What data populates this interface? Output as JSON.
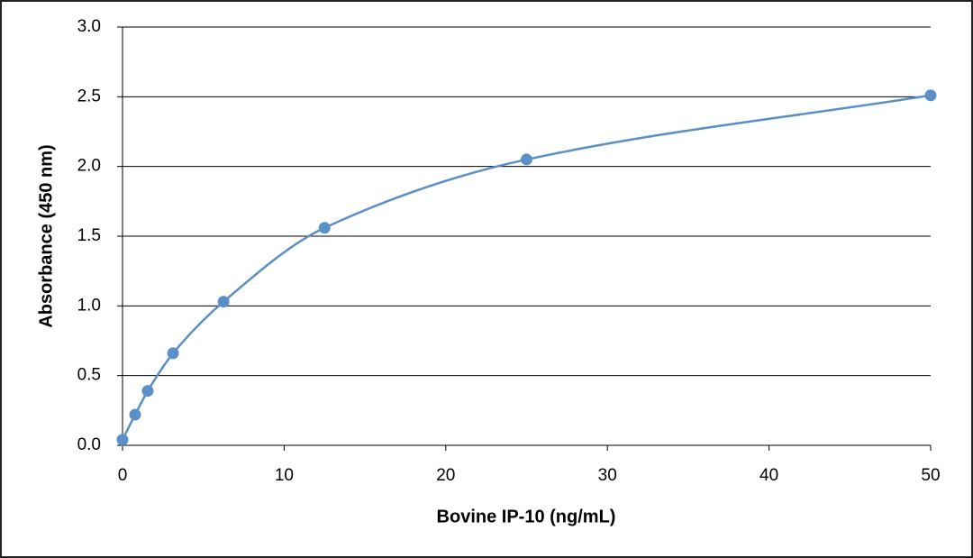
{
  "chart_data": {
    "type": "scatter",
    "x_label": "Bovine IP-10 (ng/mL)",
    "y_label": "Absorbance (450 nm)",
    "series": [
      {
        "color": "#5b8fc7",
        "x": [
          0,
          0.78,
          1.56,
          3.125,
          6.25,
          12.5,
          25,
          50
        ],
        "values": [
          0.04,
          0.22,
          0.39,
          0.66,
          1.03,
          1.56,
          2.05,
          2.51
        ]
      }
    ],
    "smooth_line": true,
    "xlim": [
      0,
      50
    ],
    "xticks": [
      0,
      10,
      20,
      30,
      40,
      50
    ],
    "ylim": [
      0,
      3
    ],
    "yticks": [
      {
        "value": 0,
        "label": "0.0"
      },
      0.5,
      {
        "value": 1,
        "label": "1.0"
      },
      1.5,
      {
        "value": 2,
        "label": "2.0"
      },
      2.5,
      {
        "value": 3,
        "label": "3.0"
      }
    ],
    "grid": true
  }
}
